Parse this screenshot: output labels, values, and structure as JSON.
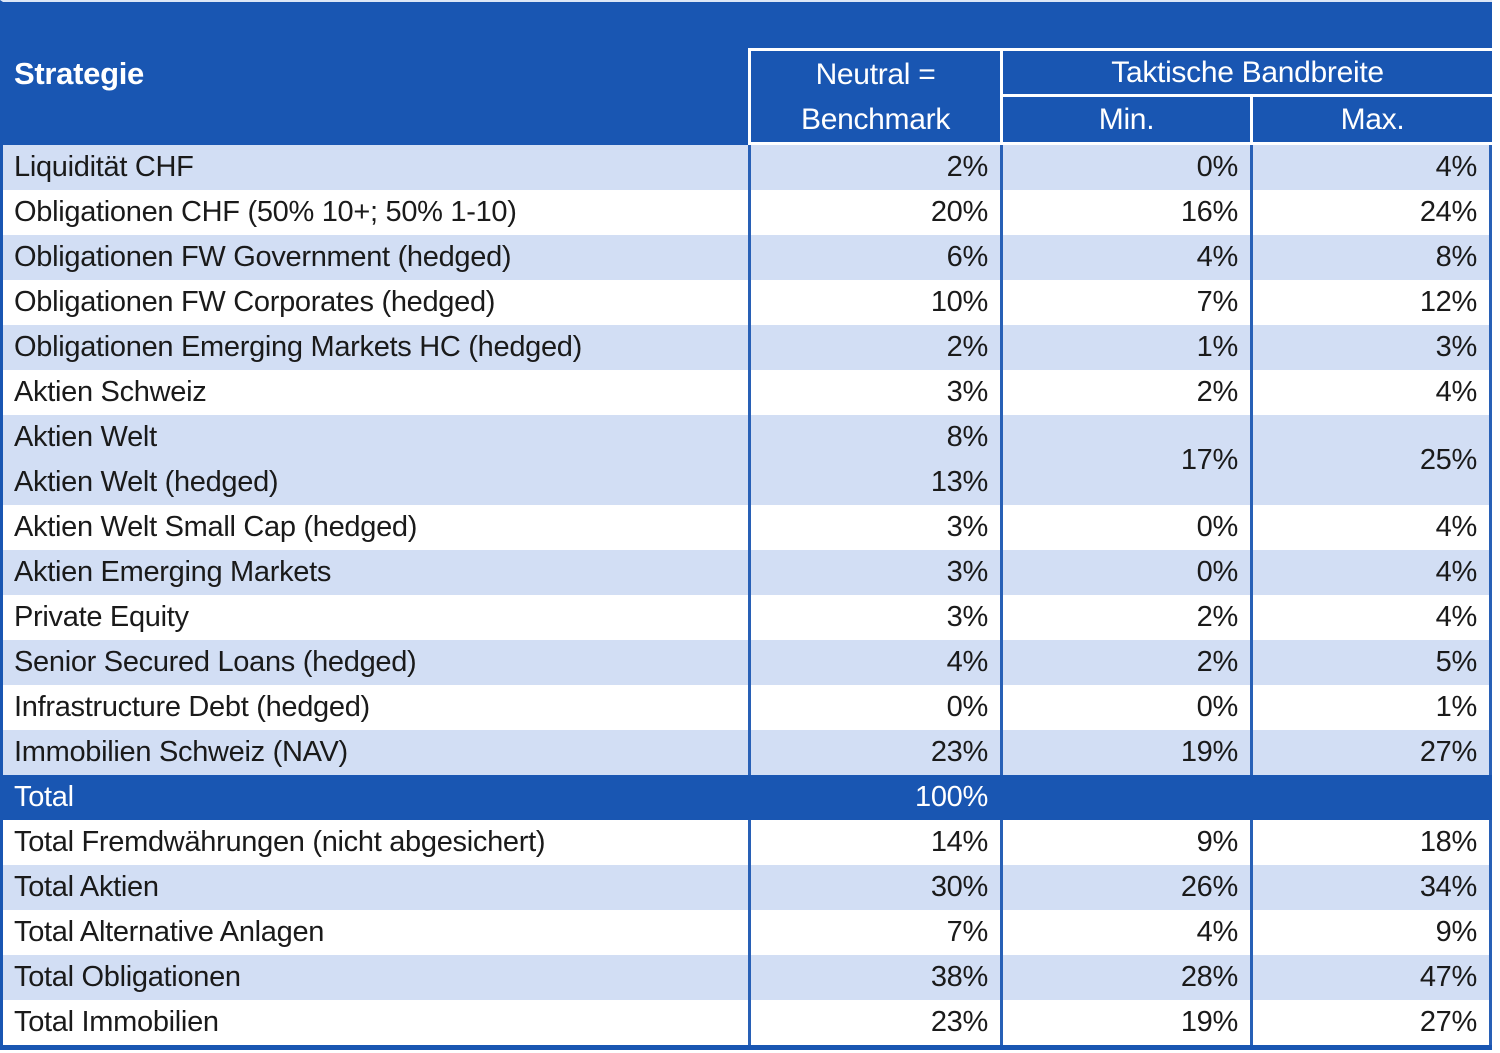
{
  "colors": {
    "royal_blue": "#1956B2",
    "grid_line_blue": "#2860B6",
    "light_row_blue": "#D2DEF4",
    "white_row": "#FFFFFF",
    "row_text": "#1A1A1A",
    "header_text": "#FFFFFF"
  },
  "header": {
    "strategy": "Strategie",
    "neutral_line1": "Neutral =",
    "neutral_line2": "Benchmark",
    "band": "Taktische Bandbreite",
    "min": "Min.",
    "max": "Max."
  },
  "chart_data": {
    "type": "table",
    "title": "Strategie – Neutral/Benchmark und Taktische Bandbreite",
    "columns": [
      "Strategie",
      "Neutral = Benchmark",
      "Taktische Bandbreite Min.",
      "Taktische Bandbreite Max."
    ],
    "rows": [
      {
        "name": "Liquidität CHF",
        "benchmark": "2%",
        "min": "0%",
        "max": "4%",
        "shade": "light"
      },
      {
        "name": "Obligationen CHF (50% 10+; 50% 1-10)",
        "benchmark": "20%",
        "min": "16%",
        "max": "24%",
        "shade": "white"
      },
      {
        "name": "Obligationen FW Government (hedged)",
        "benchmark": "6%",
        "min": "4%",
        "max": "8%",
        "shade": "light"
      },
      {
        "name": "Obligationen FW Corporates (hedged)",
        "benchmark": "10%",
        "min": "7%",
        "max": "12%",
        "shade": "white"
      },
      {
        "name": "Obligationen Emerging Markets HC (hedged)",
        "benchmark": "2%",
        "min": "1%",
        "max": "3%",
        "shade": "light"
      },
      {
        "name": "Aktien Schweiz",
        "benchmark": "3%",
        "min": "2%",
        "max": "4%",
        "shade": "white"
      },
      {
        "type": "merged",
        "shade": "light",
        "min": "17%",
        "max": "25%",
        "sub_rows": [
          {
            "name": "Aktien Welt",
            "benchmark": "8%"
          },
          {
            "name": "Aktien Welt (hedged)",
            "benchmark": "13%"
          }
        ]
      },
      {
        "name": "Aktien Welt Small Cap (hedged)",
        "benchmark": "3%",
        "min": "0%",
        "max": "4%",
        "shade": "white"
      },
      {
        "name": "Aktien Emerging Markets",
        "benchmark": "3%",
        "min": "0%",
        "max": "4%",
        "shade": "light"
      },
      {
        "name": "Private Equity",
        "benchmark": "3%",
        "min": "2%",
        "max": "4%",
        "shade": "white"
      },
      {
        "name": "Senior Secured Loans (hedged)",
        "benchmark": "4%",
        "min": "2%",
        "max": "5%",
        "shade": "light"
      },
      {
        "name": "Infrastructure Debt (hedged)",
        "benchmark": "0%",
        "min": "0%",
        "max": "1%",
        "shade": "white"
      },
      {
        "name": "Immobilien Schweiz (NAV)",
        "benchmark": "23%",
        "min": "19%",
        "max": "27%",
        "shade": "light"
      },
      {
        "type": "total",
        "name": "Total",
        "benchmark": "100%",
        "min": "",
        "max": "",
        "shade": "total"
      },
      {
        "name": "Total Fremdwährungen (nicht abgesichert)",
        "benchmark": "14%",
        "min": "9%",
        "max": "18%",
        "shade": "white"
      },
      {
        "name": "Total Aktien",
        "benchmark": "30%",
        "min": "26%",
        "max": "34%",
        "shade": "light"
      },
      {
        "name": "Total Alternative Anlagen",
        "benchmark": "7%",
        "min": "4%",
        "max": "9%",
        "shade": "white"
      },
      {
        "name": "Total Obligationen",
        "benchmark": "38%",
        "min": "28%",
        "max": "47%",
        "shade": "light"
      },
      {
        "name": "Total Immobilien",
        "benchmark": "23%",
        "min": "19%",
        "max": "27%",
        "shade": "white"
      }
    ]
  }
}
